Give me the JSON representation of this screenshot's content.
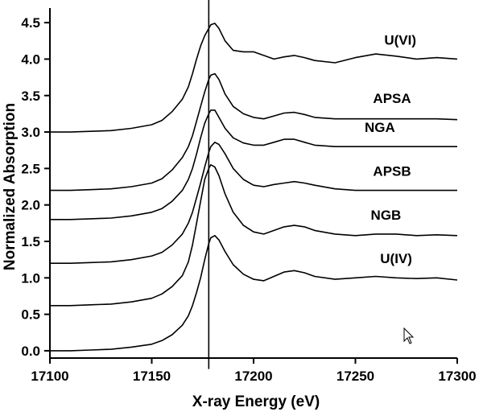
{
  "chart_data": {
    "type": "line",
    "xlabel": "X-ray Energy (eV)",
    "ylabel": "Normalized Absorption",
    "xlim": [
      17100,
      17300
    ],
    "ylim": [
      -0.1,
      4.7
    ],
    "xticks": [
      17100,
      17150,
      17200,
      17250,
      17300
    ],
    "yticks": [
      0.0,
      0.5,
      1.0,
      1.5,
      2.0,
      2.5,
      3.0,
      3.5,
      4.0,
      4.5
    ],
    "ytick_labels": [
      "0.0",
      "0.5",
      "1.0",
      "1.5",
      "2.0",
      "2.5",
      "3.0",
      "3.5",
      "4.0",
      "4.5"
    ],
    "reference_line_x": 17178,
    "reference_line_yrange": [
      -0.25,
      4.82
    ],
    "series": [
      {
        "name": "U(IV)",
        "x": [
          17100,
          17110,
          17120,
          17130,
          17140,
          17150,
          17155,
          17160,
          17165,
          17168,
          17170,
          17172,
          17174,
          17176,
          17178,
          17179,
          17181,
          17183,
          17186,
          17190,
          17195,
          17200,
          17205,
          17210,
          17215,
          17220,
          17225,
          17230,
          17240,
          17250,
          17260,
          17270,
          17280,
          17290,
          17300
        ],
        "y": [
          0.0,
          0.0,
          0.01,
          0.02,
          0.05,
          0.09,
          0.14,
          0.22,
          0.35,
          0.48,
          0.62,
          0.8,
          1.0,
          1.25,
          1.47,
          1.55,
          1.58,
          1.52,
          1.36,
          1.18,
          1.05,
          0.98,
          0.96,
          1.02,
          1.08,
          1.1,
          1.07,
          1.02,
          0.98,
          1.0,
          1.02,
          1.0,
          0.99,
          1.0,
          0.97
        ]
      },
      {
        "name": "NGB",
        "x": [
          17100,
          17110,
          17120,
          17130,
          17140,
          17150,
          17155,
          17160,
          17165,
          17168,
          17170,
          17172,
          17174,
          17176,
          17178,
          17179,
          17181,
          17183,
          17186,
          17190,
          17195,
          17200,
          17205,
          17210,
          17215,
          17220,
          17225,
          17230,
          17240,
          17250,
          17260,
          17270,
          17280,
          17290,
          17300
        ],
        "y": [
          0.62,
          0.62,
          0.63,
          0.64,
          0.67,
          0.72,
          0.78,
          0.88,
          1.03,
          1.22,
          1.45,
          1.75,
          2.05,
          2.35,
          2.5,
          2.55,
          2.52,
          2.4,
          2.15,
          1.9,
          1.72,
          1.63,
          1.6,
          1.65,
          1.7,
          1.72,
          1.7,
          1.65,
          1.6,
          1.58,
          1.6,
          1.6,
          1.58,
          1.59,
          1.58
        ]
      },
      {
        "name": "APSB",
        "x": [
          17100,
          17110,
          17120,
          17130,
          17140,
          17150,
          17155,
          17160,
          17165,
          17168,
          17170,
          17172,
          17174,
          17176,
          17178,
          17179,
          17181,
          17183,
          17186,
          17190,
          17195,
          17200,
          17205,
          17210,
          17215,
          17220,
          17225,
          17230,
          17240,
          17250,
          17260,
          17270,
          17280,
          17290,
          17300
        ],
        "y": [
          1.2,
          1.2,
          1.21,
          1.22,
          1.25,
          1.3,
          1.35,
          1.45,
          1.6,
          1.75,
          1.9,
          2.1,
          2.3,
          2.52,
          2.72,
          2.8,
          2.86,
          2.83,
          2.7,
          2.5,
          2.35,
          2.27,
          2.25,
          2.28,
          2.3,
          2.32,
          2.3,
          2.27,
          2.22,
          2.2,
          2.2,
          2.2,
          2.2,
          2.2,
          2.2
        ]
      },
      {
        "name": "NGA",
        "x": [
          17100,
          17110,
          17120,
          17130,
          17140,
          17150,
          17155,
          17160,
          17165,
          17168,
          17170,
          17172,
          17174,
          17176,
          17178,
          17179,
          17181,
          17183,
          17186,
          17190,
          17195,
          17200,
          17205,
          17210,
          17215,
          17220,
          17225,
          17230,
          17240,
          17250,
          17260,
          17270,
          17280,
          17290,
          17300
        ],
        "y": [
          1.8,
          1.8,
          1.81,
          1.82,
          1.85,
          1.9,
          1.95,
          2.05,
          2.2,
          2.35,
          2.5,
          2.7,
          2.92,
          3.12,
          3.25,
          3.3,
          3.3,
          3.2,
          3.05,
          2.92,
          2.85,
          2.82,
          2.82,
          2.86,
          2.9,
          2.9,
          2.86,
          2.82,
          2.8,
          2.8,
          2.8,
          2.8,
          2.8,
          2.8,
          2.8
        ]
      },
      {
        "name": "APSA",
        "x": [
          17100,
          17110,
          17120,
          17130,
          17140,
          17150,
          17155,
          17160,
          17165,
          17168,
          17170,
          17172,
          17174,
          17176,
          17178,
          17179,
          17181,
          17183,
          17186,
          17190,
          17195,
          17200,
          17205,
          17210,
          17215,
          17220,
          17225,
          17230,
          17240,
          17250,
          17260,
          17270,
          17280,
          17290,
          17300
        ],
        "y": [
          2.2,
          2.2,
          2.21,
          2.22,
          2.25,
          2.3,
          2.36,
          2.48,
          2.65,
          2.8,
          2.95,
          3.15,
          3.35,
          3.55,
          3.72,
          3.78,
          3.8,
          3.72,
          3.52,
          3.35,
          3.25,
          3.2,
          3.18,
          3.22,
          3.26,
          3.27,
          3.24,
          3.2,
          3.18,
          3.18,
          3.18,
          3.18,
          3.18,
          3.18,
          3.17
        ]
      },
      {
        "name": "U(VI)",
        "x": [
          17100,
          17110,
          17120,
          17130,
          17140,
          17150,
          17155,
          17160,
          17165,
          17168,
          17170,
          17172,
          17174,
          17176,
          17178,
          17179,
          17181,
          17183,
          17186,
          17190,
          17195,
          17200,
          17205,
          17210,
          17215,
          17220,
          17225,
          17230,
          17240,
          17250,
          17260,
          17270,
          17280,
          17290,
          17300
        ],
        "y": [
          3.0,
          3.0,
          3.01,
          3.02,
          3.05,
          3.1,
          3.16,
          3.28,
          3.45,
          3.62,
          3.8,
          4.0,
          4.18,
          4.32,
          4.42,
          4.47,
          4.49,
          4.42,
          4.25,
          4.12,
          4.1,
          4.1,
          4.05,
          4.0,
          4.03,
          4.05,
          4.02,
          3.98,
          3.95,
          4.02,
          4.07,
          4.04,
          4.0,
          4.02,
          4.0
        ]
      }
    ],
    "series_labels": [
      {
        "name": "U(VI)",
        "x": 17272,
        "y": 4.2
      },
      {
        "name": "APSA",
        "x": 17268,
        "y": 3.4
      },
      {
        "name": "NGA",
        "x": 17262,
        "y": 3.0
      },
      {
        "name": "APSB",
        "x": 17268,
        "y": 2.4
      },
      {
        "name": "NGB",
        "x": 17265,
        "y": 1.8
      },
      {
        "name": "U(IV)",
        "x": 17270,
        "y": 1.2
      }
    ]
  },
  "icons": {
    "cursor": "mouse-pointer-icon"
  }
}
